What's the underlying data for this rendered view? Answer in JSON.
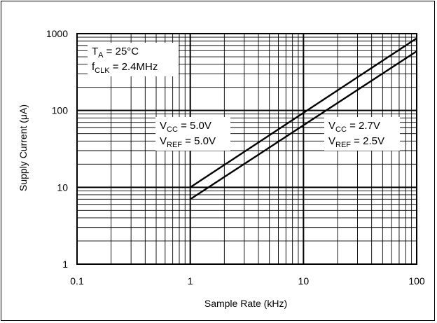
{
  "chart_data": {
    "type": "line",
    "xlabel": "Sample Rate (kHz)",
    "ylabel": "Supply Current (μA)",
    "x_scale": "log",
    "y_scale": "log",
    "xlim": [
      0.1,
      100
    ],
    "ylim": [
      1,
      1000
    ],
    "grid": true,
    "x_ticks": [
      "0.1",
      "1",
      "10",
      "100"
    ],
    "y_ticks": [
      "1",
      "10",
      "100",
      "1000"
    ],
    "series": [
      {
        "values": [
          {
            "x": 1,
            "y": 10
          },
          {
            "x": 100,
            "y": 870
          }
        ]
      },
      {
        "values": [
          {
            "x": 1,
            "y": 7
          },
          {
            "x": 100,
            "y": 590
          }
        ]
      }
    ],
    "annotations": {
      "conditions": [
        {
          "main": "T",
          "sub": "A",
          "rest": " = 25°C"
        },
        {
          "main": "f",
          "sub": "CLK",
          "rest": " = 2.4MHz"
        }
      ],
      "upper_curve": [
        {
          "main": "V",
          "sub": "CC",
          "rest": " = 5.0V"
        },
        {
          "main": "V",
          "sub": "REF",
          "rest": " = 5.0V"
        }
      ],
      "lower_curve": [
        {
          "main": "V",
          "sub": "CC",
          "rest": " = 2.7V"
        },
        {
          "main": "V",
          "sub": "REF",
          "rest": " = 2.5V"
        }
      ]
    }
  }
}
